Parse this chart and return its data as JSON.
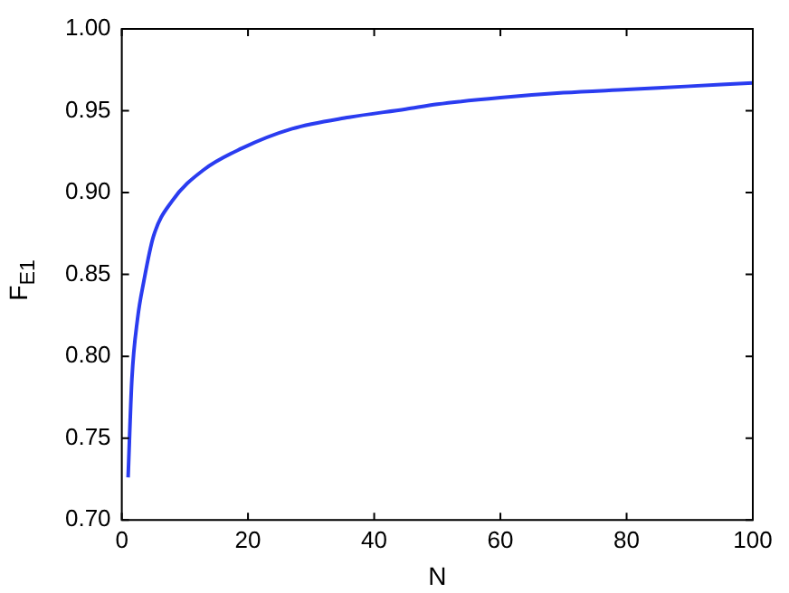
{
  "chart_data": {
    "type": "line",
    "xlabel": "N",
    "ylabel": "F$_{E1}$",
    "x": [
      1,
      1.6,
      2.5,
      3.5,
      5,
      8,
      13,
      19,
      27,
      36,
      45,
      50,
      60,
      70,
      80,
      90,
      100
    ],
    "series": [
      {
        "color": "#2a3cf0",
        "values": [
          0.726,
          0.786,
          0.823,
          0.846,
          0.873,
          0.895,
          0.914,
          0.927,
          0.939,
          0.946,
          0.951,
          0.954,
          0.958,
          0.961,
          0.963,
          0.965,
          0.967
        ]
      }
    ],
    "xlim": [
      0,
      100
    ],
    "xticks": [
      0,
      20,
      40,
      60,
      80,
      100
    ],
    "ylim": [
      0.7,
      1.0
    ],
    "yticks": [
      {
        "value": 0.7,
        "label": "0.70"
      },
      {
        "value": 0.75,
        "label": "0.75"
      },
      {
        "value": 0.8,
        "label": "0.80"
      },
      {
        "value": 0.85,
        "label": "0.85"
      },
      {
        "value": 0.9,
        "label": "0.90"
      },
      {
        "value": 0.95,
        "label": "0.95"
      },
      {
        "value": 1.0,
        "label": "1.00"
      }
    ],
    "grid": false,
    "legend": false,
    "marker": "none",
    "line_style": "solid"
  }
}
